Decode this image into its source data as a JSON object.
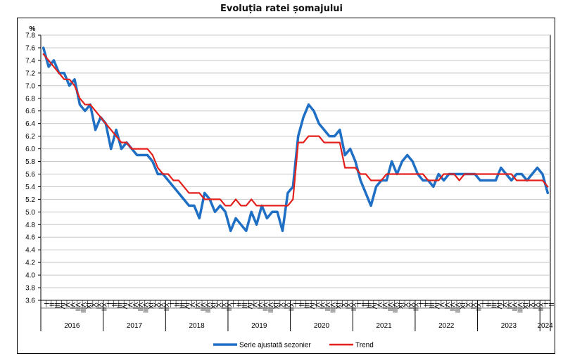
{
  "chart_data": {
    "type": "line",
    "title": "Evoluția ratei șomajului",
    "ylabel": "%",
    "ylim": [
      3.6,
      7.8
    ],
    "yticks": [
      "3.6",
      "3.8",
      "4.0",
      "4.2",
      "4.4",
      "4.6",
      "4.8",
      "5.0",
      "5.2",
      "5.4",
      "5.6",
      "5.8",
      "6.0",
      "6.2",
      "6.4",
      "6.6",
      "6.8",
      "7.0",
      "7.2",
      "7.4",
      "7.6",
      "7.8"
    ],
    "years": [
      "2016",
      "2017",
      "2018",
      "2019",
      "2020",
      "2021",
      "2022",
      "2023",
      "2024"
    ],
    "months_per_year": 12,
    "month_ticks": [
      "I",
      "II",
      "III",
      "IV",
      "V",
      "VI",
      "VII",
      "VIII",
      "IX",
      "X",
      "XI",
      "XII"
    ],
    "grid": true,
    "legend_position": "bottom",
    "series": [
      {
        "name": "Serie ajustată sezonier",
        "color": "#1f6fc5",
        "values": [
          7.6,
          7.3,
          7.4,
          7.2,
          7.2,
          7.0,
          7.1,
          6.7,
          6.6,
          6.7,
          6.3,
          6.5,
          6.4,
          6.0,
          6.3,
          6.0,
          6.1,
          6.0,
          5.9,
          5.9,
          5.9,
          5.8,
          5.6,
          5.6,
          5.5,
          5.4,
          5.3,
          5.2,
          5.1,
          5.1,
          4.9,
          5.3,
          5.2,
          5.0,
          5.1,
          5.0,
          4.7,
          4.9,
          4.8,
          4.7,
          5.0,
          4.8,
          5.1,
          4.9,
          5.0,
          5.0,
          4.7,
          5.3,
          5.4,
          6.2,
          6.5,
          6.7,
          6.6,
          6.4,
          6.3,
          6.2,
          6.2,
          6.3,
          5.9,
          6.0,
          5.8,
          5.5,
          5.3,
          5.1,
          5.4,
          5.5,
          5.5,
          5.8,
          5.6,
          5.8,
          5.9,
          5.8,
          5.6,
          5.5,
          5.5,
          5.4,
          5.6,
          5.5,
          5.6,
          5.6,
          5.6,
          5.6,
          5.6,
          5.6,
          5.5,
          5.5,
          5.5,
          5.5,
          5.7,
          5.6,
          5.5,
          5.6,
          5.6,
          5.5,
          5.6,
          5.7,
          5.6,
          5.3
        ]
      },
      {
        "name": "Trend",
        "color": "#e3201b",
        "values": [
          7.5,
          7.4,
          7.3,
          7.2,
          7.1,
          7.1,
          7.0,
          6.8,
          6.7,
          6.7,
          6.6,
          6.5,
          6.4,
          6.3,
          6.2,
          6.1,
          6.1,
          6.0,
          6.0,
          6.0,
          6.0,
          5.9,
          5.7,
          5.6,
          5.6,
          5.5,
          5.5,
          5.4,
          5.3,
          5.3,
          5.3,
          5.2,
          5.2,
          5.2,
          5.2,
          5.1,
          5.1,
          5.2,
          5.1,
          5.1,
          5.2,
          5.1,
          5.1,
          5.1,
          5.1,
          5.1,
          5.1,
          5.1,
          5.2,
          6.1,
          6.1,
          6.2,
          6.2,
          6.2,
          6.1,
          6.1,
          6.1,
          6.1,
          5.7,
          5.7,
          5.7,
          5.6,
          5.6,
          5.5,
          5.5,
          5.5,
          5.6,
          5.6,
          5.6,
          5.6,
          5.6,
          5.6,
          5.6,
          5.6,
          5.5,
          5.5,
          5.5,
          5.6,
          5.6,
          5.6,
          5.5,
          5.6,
          5.6,
          5.6,
          5.6,
          5.6,
          5.6,
          5.6,
          5.6,
          5.6,
          5.6,
          5.5,
          5.5,
          5.5,
          5.5,
          5.5,
          5.5,
          5.4
        ]
      }
    ]
  }
}
